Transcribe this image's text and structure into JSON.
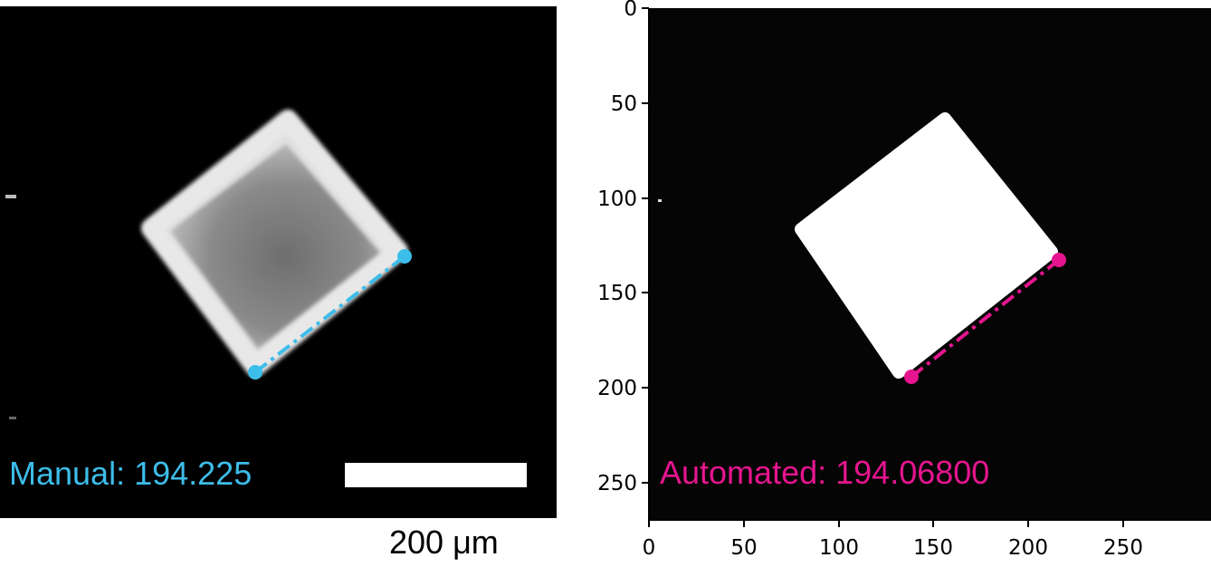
{
  "left_panel": {
    "measurement_label": "Manual:",
    "measurement_value": "194.225",
    "measurement_color": "#3dbde9",
    "scale_bar_label": "200 μm",
    "scale_bar_color": "#ffffff"
  },
  "right_panel": {
    "measurement_label": "Automated:",
    "measurement_value": "194.06800",
    "measurement_color": "#e6158f",
    "x_ticks": [
      "0",
      "50",
      "100",
      "150",
      "200",
      "250"
    ],
    "y_ticks": [
      "0",
      "50",
      "100",
      "150",
      "200",
      "250"
    ],
    "line_start": [
      138,
      195
    ],
    "line_end": [
      215,
      133
    ]
  },
  "colors": {
    "background": "#000000",
    "crystal_fill": "#ffffff"
  }
}
